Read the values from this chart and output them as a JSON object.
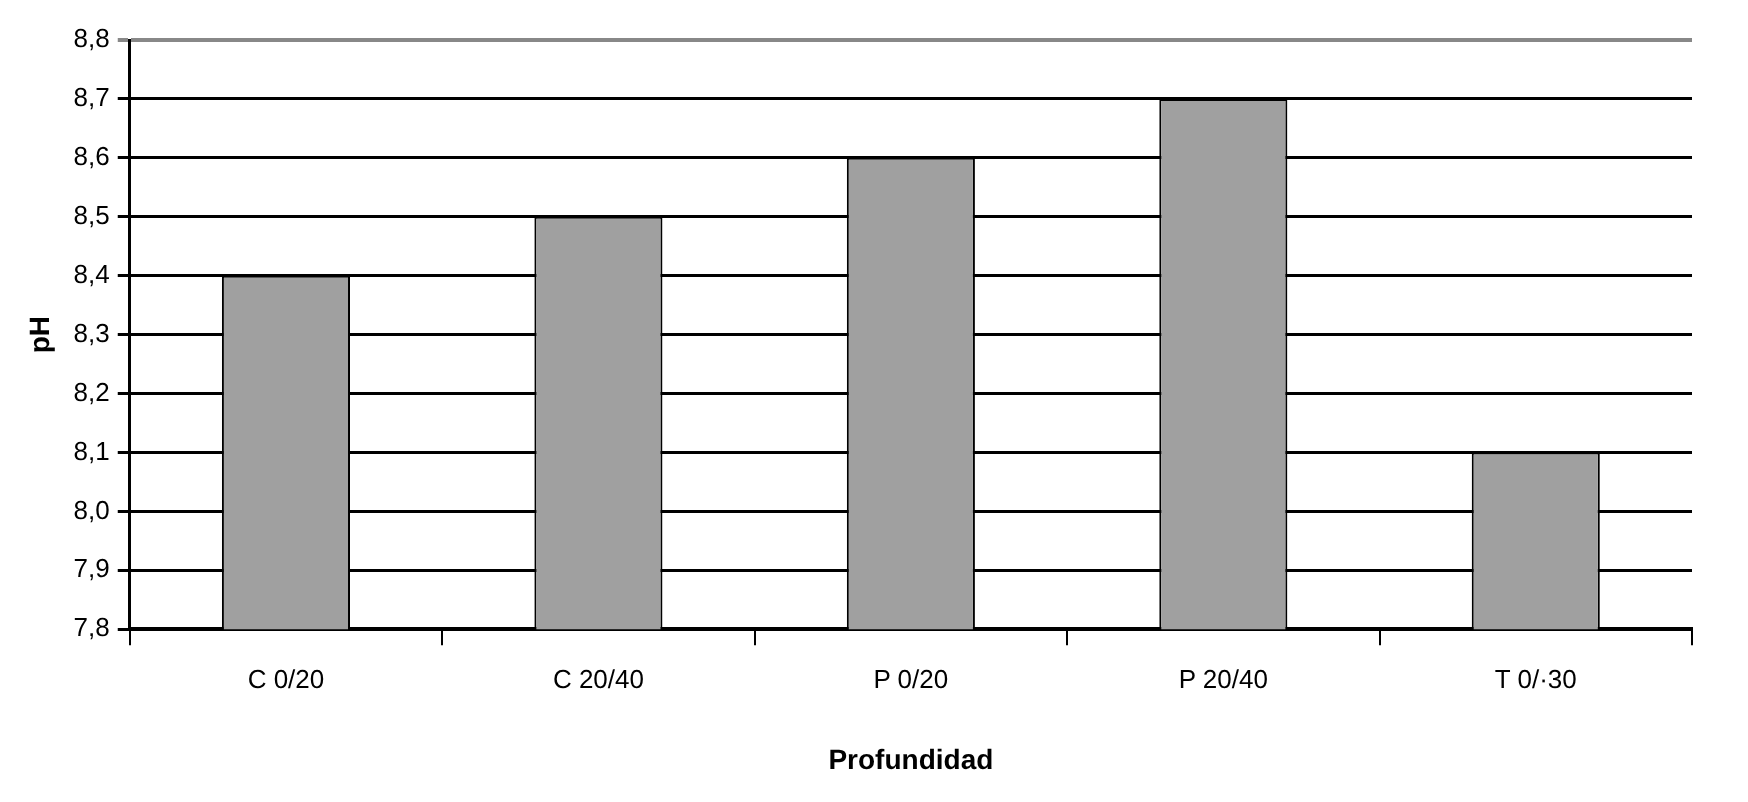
{
  "chart_data": {
    "type": "bar",
    "xlabel": "Profundidad",
    "ylabel": "pH",
    "categories": [
      "C 0/20",
      "C 20/40",
      "P 0/20",
      "P 20/40",
      "T 0/·30"
    ],
    "values": [
      8.4,
      8.5,
      8.6,
      8.7,
      8.1
    ],
    "color": "#a0a0a0",
    "ylim": [
      7.8,
      8.8
    ],
    "yticks": [
      {
        "value": 7.8,
        "label": "7,8"
      },
      {
        "value": 7.9,
        "label": "7,9"
      },
      {
        "value": 8.0,
        "label": "8,0"
      },
      {
        "value": 8.1,
        "label": "8,1"
      },
      {
        "value": 8.2,
        "label": "8,2"
      },
      {
        "value": 8.3,
        "label": "8,3"
      },
      {
        "value": 8.4,
        "label": "8,4"
      },
      {
        "value": 8.5,
        "label": "8,5"
      },
      {
        "value": 8.6,
        "label": "8,6"
      },
      {
        "value": 8.7,
        "label": "8,7"
      },
      {
        "value": 8.8,
        "label": "8,8"
      }
    ],
    "grid": "y"
  }
}
